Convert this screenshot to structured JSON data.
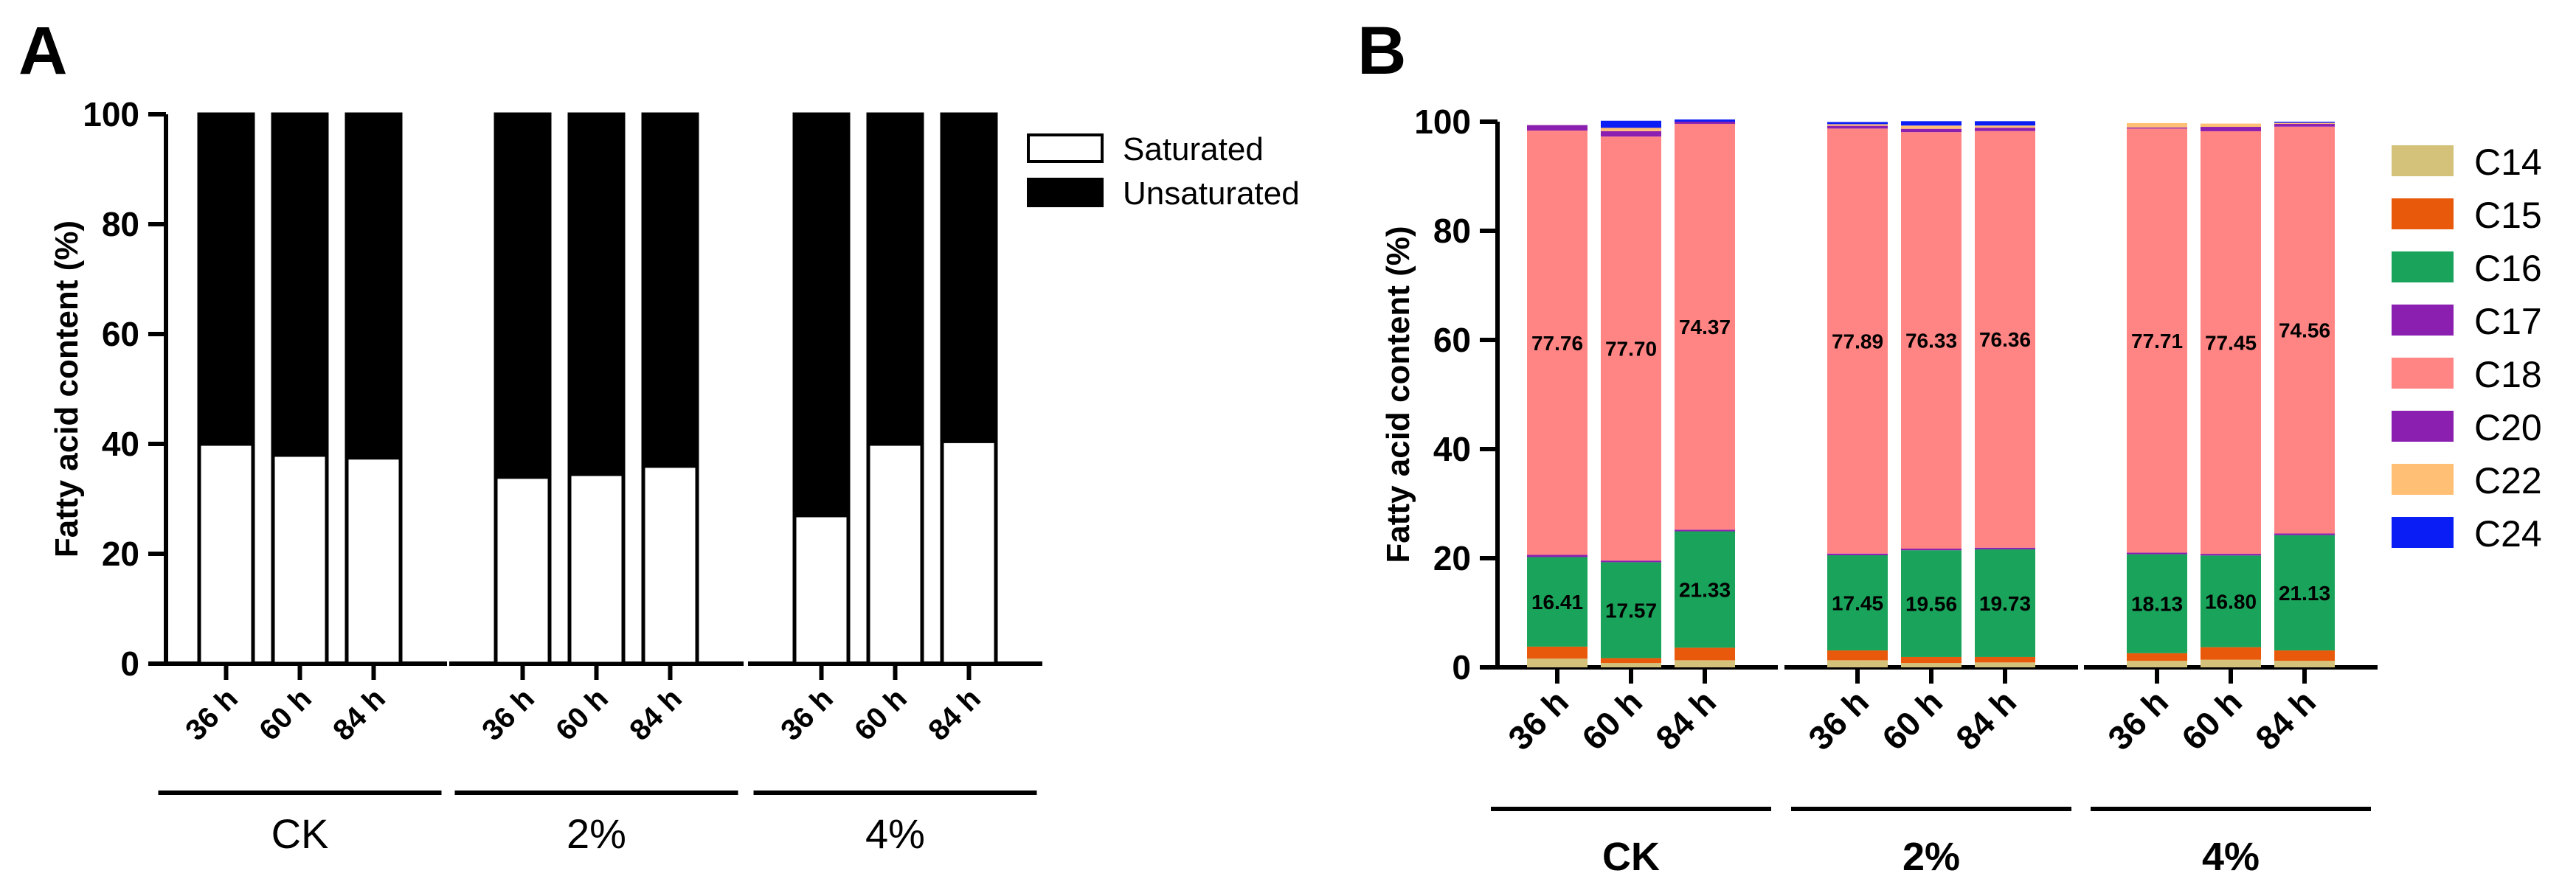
{
  "panels": {
    "a": {
      "label": "A"
    },
    "b": {
      "label": "B"
    }
  },
  "chart_data": [
    {
      "type": "bar",
      "stacked": true,
      "panel": "A",
      "ylabel": "Fatty acid content (%)",
      "ylim": [
        0,
        100
      ],
      "yticks": [
        "0",
        "20",
        "40",
        "60",
        "80",
        "100"
      ],
      "groups": [
        {
          "label": "CK",
          "categories": [
            "36 h",
            "60 h",
            "84 h"
          ]
        },
        {
          "label": "2%",
          "categories": [
            "36 h",
            "60 h",
            "84 h"
          ]
        },
        {
          "label": "4%",
          "categories": [
            "36 h",
            "60 h",
            "84 h"
          ]
        }
      ],
      "series": [
        {
          "name": "Saturated",
          "color": "#ffffff",
          "values": [
            40,
            38,
            37.5,
            34,
            34.5,
            36,
            27,
            40,
            40.5
          ]
        },
        {
          "name": "Unsaturated",
          "color": "#000000",
          "values": [
            60,
            62,
            62.5,
            66,
            65.5,
            64,
            73,
            60,
            59.5
          ]
        }
      ],
      "legend": "top-right"
    },
    {
      "type": "bar",
      "stacked": true,
      "panel": "B",
      "ylabel": "Fatty acid content (%)",
      "ylim": [
        0,
        100
      ],
      "yticks": [
        "0",
        "20",
        "40",
        "60",
        "80",
        "100"
      ],
      "groups": [
        {
          "label": "CK",
          "categories": [
            "36 h",
            "60 h",
            "84 h"
          ]
        },
        {
          "label": "2%",
          "categories": [
            "36 h",
            "60 h",
            "84 h"
          ]
        },
        {
          "label": "4%",
          "categories": [
            "36 h",
            "60 h",
            "84 h"
          ]
        }
      ],
      "series": [
        {
          "name": "C14",
          "color": "#d4c17a",
          "values": [
            1.6,
            0.8,
            1.3,
            1.3,
            0.8,
            0.9,
            1.2,
            1.4,
            1.2
          ]
        },
        {
          "name": "C15",
          "color": "#e8590c",
          "values": [
            2.2,
            0.9,
            2.3,
            1.8,
            1.1,
            1.0,
            1.4,
            2.3,
            1.9
          ]
        },
        {
          "name": "C16",
          "color": "#1aa35a",
          "values": [
            16.41,
            17.57,
            21.33,
            17.45,
            19.56,
            19.73,
            18.13,
            16.8,
            21.13
          ],
          "labels": [
            "16.41",
            "17.57",
            "21.33",
            "17.45",
            "19.56",
            "19.73",
            "18.13",
            "16.80",
            "21.13"
          ]
        },
        {
          "name": "C17",
          "color": "#8a1fb0",
          "values": [
            0.4,
            0.3,
            0.3,
            0.3,
            0.3,
            0.3,
            0.3,
            0.3,
            0.3
          ]
        },
        {
          "name": "C18",
          "color": "#ff8585",
          "values": [
            77.76,
            77.7,
            74.37,
            77.89,
            76.33,
            76.36,
            77.71,
            77.45,
            74.56
          ],
          "labels": [
            "77.76",
            "77.70",
            "74.37",
            "77.89",
            "76.33",
            "76.36",
            "77.71",
            "77.45",
            "74.56"
          ]
        },
        {
          "name": "C20",
          "color": "#8a1fb0",
          "values": [
            1.0,
            1.0,
            0.4,
            0.5,
            0.6,
            0.6,
            0.2,
            0.8,
            0.5
          ]
        },
        {
          "name": "C22",
          "color": "#ffbf75",
          "values": [
            0.0,
            0.6,
            0.0,
            0.3,
            0.6,
            0.4,
            0.8,
            0.6,
            0.2
          ]
        },
        {
          "name": "C24",
          "color": "#0b1df5",
          "values": [
            0.0,
            1.3,
            0.4,
            0.4,
            0.8,
            0.8,
            0.0,
            0.0,
            0.2
          ]
        }
      ],
      "legend": "right"
    }
  ]
}
